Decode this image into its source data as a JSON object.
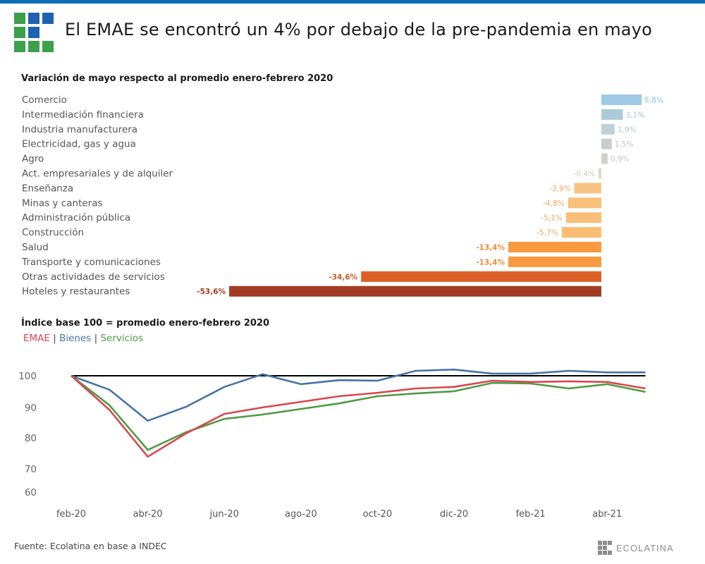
{
  "header": {
    "title": "El EMAE se encontró un 4% por debajo de la pre-pandemia en mayo",
    "logo_colors": [
      "#3aa04a",
      "#1f62b0"
    ]
  },
  "footer": {
    "source": "Fuente: Ecolatina en base a INDEC",
    "brand": "ECOLATINA"
  },
  "colors": {
    "topbar": "#0d6fb8",
    "emae": "#d9474f",
    "bienes": "#4672a8",
    "servicios": "#4f9a45",
    "reference_line": "#000000"
  },
  "chart_data": [
    {
      "type": "bar",
      "orientation": "horizontal",
      "title": "Variación de mayo respecto al promedio enero-febrero 2020",
      "unit": "%",
      "categories": [
        "Comercio",
        "Intermediación financiera",
        "Industria manufacturera",
        "Electricidad, gas y agua",
        "Agro",
        "Act. empresariales y de alquiler",
        "Enseñanza",
        "Minas y canteras",
        "Administración pública",
        "Construcción",
        "Salud",
        "Transporte y comunicaciones",
        "Otras actividades de servicios",
        "Hoteles y restaurantes"
      ],
      "values": [
        5.8,
        3.1,
        1.9,
        1.5,
        0.9,
        -0.4,
        -3.9,
        -4.8,
        -5.1,
        -5.7,
        -13.4,
        -13.4,
        -34.6,
        -53.6
      ],
      "labels": [
        "5,8%",
        "3,1%",
        "1,9%",
        "1,5%",
        "0,9%",
        "-0,4%",
        "-3,9%",
        "-4,8%",
        "-5,1%",
        "-5,7%",
        "-13,4%",
        "-13,4%",
        "-34,6%",
        "-53,6%"
      ],
      "bar_colors": [
        "#9ecae5",
        "#aacbd8",
        "#bfd0d6",
        "#c8cdcd",
        "#cfcfcb",
        "#e0d6c6",
        "#f8c483",
        "#f8c07a",
        "#f8bf78",
        "#f8bd73",
        "#f79a40",
        "#f79a40",
        "#dd5f28",
        "#a23d22"
      ],
      "label_colors": [
        "#86bfe0",
        "#a8c3ce",
        "#b9c8ce",
        "#c0c4c4",
        "#c6c6c4",
        "#d2c9bb",
        "#f0a860",
        "#f0a860",
        "#f0a860",
        "#f0a860",
        "#ef8c33",
        "#ef8c33",
        "#d0571f",
        "#a23d22"
      ]
    },
    {
      "type": "line",
      "title": "Índice base 100 = promedio enero-febrero 2020",
      "x": [
        "feb-20",
        "mar-20",
        "abr-20",
        "may-20",
        "jun-20",
        "jul-20",
        "ago-20",
        "sep-20",
        "oct-20",
        "nov-20",
        "dic-20",
        "ene-21",
        "feb-21",
        "mar-21",
        "abr-21",
        "may-21"
      ],
      "xtick_labels": [
        "feb-20",
        "abr-20",
        "jun-20",
        "ago-20",
        "oct-20",
        "dic-20",
        "feb-21",
        "abr-21"
      ],
      "ytick_labels": [
        "100",
        "90",
        "80",
        "70",
        "60"
      ],
      "yticks": [
        100,
        90,
        80,
        70,
        60
      ],
      "ylim": [
        60,
        100
      ],
      "reference_line": 100,
      "grid": false,
      "legend": [
        "EMAE",
        "Bienes",
        "Servicios"
      ],
      "legend_position": "top-left",
      "series": [
        {
          "name": "EMAE",
          "values": [
            100,
            89.0,
            73.9,
            81.4,
            87.7,
            89.8,
            91.6,
            93.4,
            94.5,
            95.9,
            96.4,
            98.4,
            98.0,
            98.2,
            98.0,
            95.9
          ]
        },
        {
          "name": "Bienes",
          "values": [
            100,
            95.5,
            85.5,
            90.0,
            96.4,
            100.5,
            97.3,
            98.6,
            98.4,
            101.6,
            102.0,
            100.7,
            100.7,
            101.6,
            101.1,
            101.1
          ]
        },
        {
          "name": "Servicios",
          "values": [
            100,
            90.5,
            76.1,
            81.8,
            86.1,
            87.5,
            89.3,
            91.1,
            93.4,
            94.3,
            95.0,
            97.7,
            97.5,
            95.9,
            97.3,
            94.8
          ]
        }
      ]
    }
  ]
}
